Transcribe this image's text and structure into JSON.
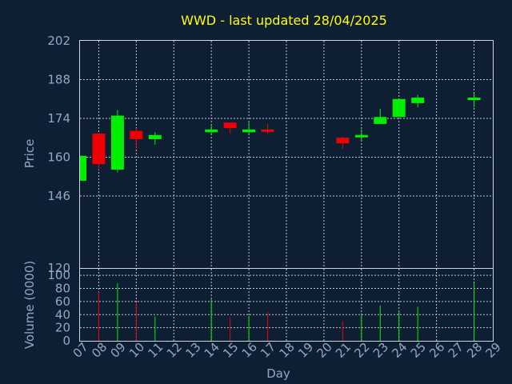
{
  "chart_data": [
    {
      "type": "candlestick",
      "title": "WWD - last updated 28/04/2025",
      "xlabel": "Day",
      "ylabel": "Price",
      "ylim": [
        120,
        202
      ],
      "y_ticks": [
        120,
        146,
        160,
        174,
        188,
        202
      ],
      "x_ticks": [
        "07",
        "08",
        "09",
        "10",
        "11",
        "12",
        "13",
        "14",
        "15",
        "16",
        "17",
        "18",
        "19",
        "20",
        "21",
        "22",
        "23",
        "24",
        "25",
        "26",
        "27",
        "28",
        "29"
      ],
      "grid": true,
      "candles": [
        {
          "day": 7,
          "open": 151.5,
          "high": 160.5,
          "low": 151.5,
          "close": 160.5
        },
        {
          "day": 8,
          "open": 168.5,
          "high": 168.5,
          "low": 155.5,
          "close": 157.5
        },
        {
          "day": 9,
          "open": 155.5,
          "high": 177.0,
          "low": 154.5,
          "close": 175.0
        },
        {
          "day": 10,
          "open": 169.5,
          "high": 170.5,
          "low": 163.0,
          "close": 166.5
        },
        {
          "day": 11,
          "open": 166.5,
          "high": 169.0,
          "low": 164.5,
          "close": 168.0
        },
        {
          "day": 14,
          "open": 169.0,
          "high": 171.5,
          "low": 168.0,
          "close": 170.0
        },
        {
          "day": 15,
          "open": 172.5,
          "high": 172.5,
          "low": 168.5,
          "close": 170.5
        },
        {
          "day": 16,
          "open": 169.0,
          "high": 173.0,
          "low": 168.5,
          "close": 170.0
        },
        {
          "day": 17,
          "open": 170.0,
          "high": 172.0,
          "low": 168.5,
          "close": 169.5
        },
        {
          "day": 21,
          "open": 167.0,
          "high": 167.5,
          "low": 163.0,
          "close": 165.0
        },
        {
          "day": 22,
          "open": 167.5,
          "high": 170.0,
          "low": 166.0,
          "close": 168.0
        },
        {
          "day": 23,
          "open": 172.0,
          "high": 177.5,
          "low": 172.0,
          "close": 174.5
        },
        {
          "day": 24,
          "open": 174.5,
          "high": 181.0,
          "low": 174.5,
          "close": 181.0
        },
        {
          "day": 25,
          "open": 179.5,
          "high": 182.5,
          "low": 178.0,
          "close": 181.5
        },
        {
          "day": 28,
          "open": 181.0,
          "high": 183.0,
          "low": 178.0,
          "close": 181.5
        }
      ],
      "colors": {
        "up": "#00ee00",
        "down": "#ee0000"
      }
    },
    {
      "type": "bar",
      "ylabel": "Volume (0000)",
      "ylim": [
        0,
        110
      ],
      "y_ticks": [
        0,
        20,
        40,
        60,
        80,
        100
      ],
      "grid": true,
      "bars": [
        {
          "day": 8,
          "value": 75,
          "color": "down"
        },
        {
          "day": 9,
          "value": 88,
          "color": "up"
        },
        {
          "day": 10,
          "value": 58,
          "color": "down"
        },
        {
          "day": 11,
          "value": 37,
          "color": "up"
        },
        {
          "day": 14,
          "value": 64,
          "color": "up"
        },
        {
          "day": 15,
          "value": 36,
          "color": "down"
        },
        {
          "day": 16,
          "value": 38,
          "color": "up"
        },
        {
          "day": 17,
          "value": 44,
          "color": "down"
        },
        {
          "day": 21,
          "value": 30,
          "color": "down"
        },
        {
          "day": 22,
          "value": 42,
          "color": "up"
        },
        {
          "day": 23,
          "value": 54,
          "color": "up"
        },
        {
          "day": 24,
          "value": 46,
          "color": "up"
        },
        {
          "day": 25,
          "value": 52,
          "color": "up"
        },
        {
          "day": 28,
          "value": 88,
          "color": "up"
        }
      ]
    }
  ],
  "colors": {
    "background": "#0f1f33",
    "title": "#ffff00",
    "axis_text": "#8fa8c8",
    "grid": "#bcc6d4",
    "frame": "#d0d6de"
  }
}
